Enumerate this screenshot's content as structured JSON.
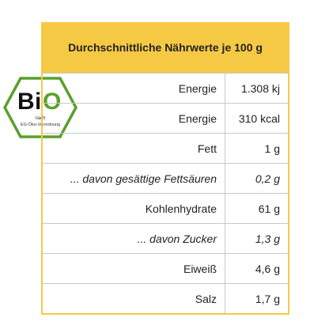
{
  "header": {
    "title": "Durchschnittliche Nährwerte je 100 g"
  },
  "logo": {
    "letters": [
      "B",
      "i",
      "O"
    ],
    "lines": [
      "nach",
      "EG-Öko-Verordnung"
    ]
  },
  "table": {
    "rows": [
      [
        "Energie",
        "1.308 kj",
        false
      ],
      [
        "Energie",
        "310 kcal",
        false
      ],
      [
        "Fett",
        "1 g",
        false
      ],
      [
        "... davon gesättige Fettsäuren",
        "0,2 g",
        true
      ],
      [
        "Kohlenhydrate",
        "61 g",
        false
      ],
      [
        "... davon Zucker",
        "1,3 g",
        true
      ],
      [
        "Eiweiß",
        "4,6 g",
        false
      ],
      [
        "Salz",
        "1,7 g",
        false
      ]
    ]
  }
}
